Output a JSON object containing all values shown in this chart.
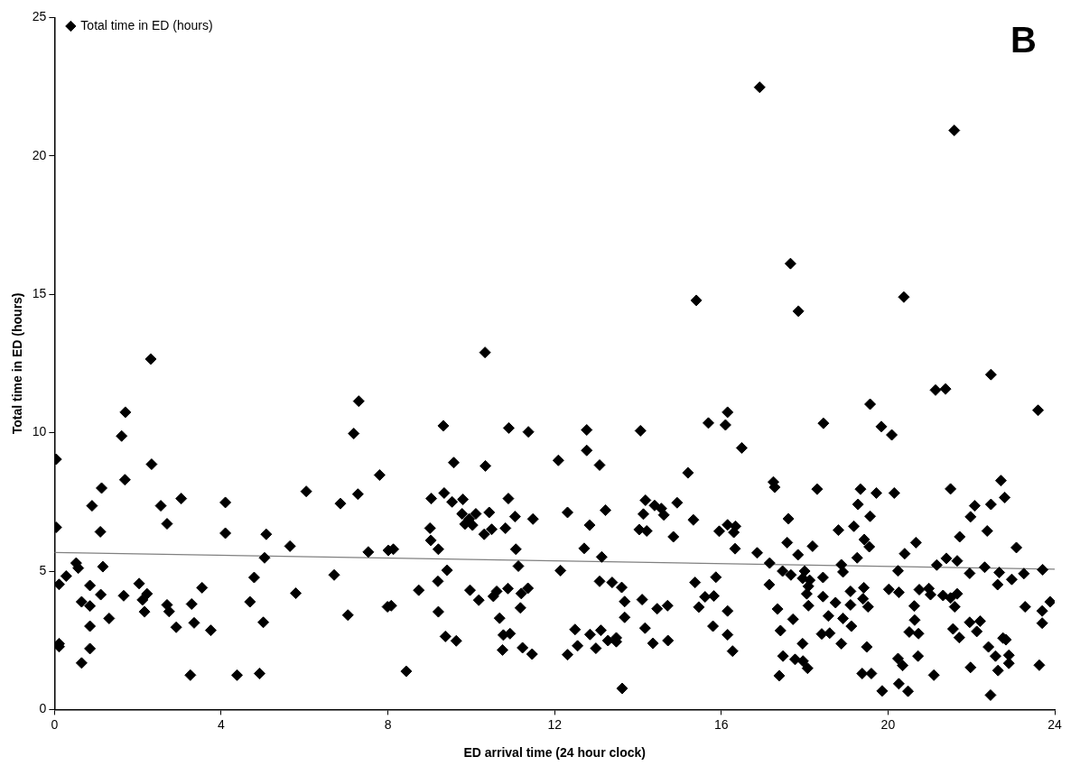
{
  "chart_data": {
    "type": "scatter",
    "xlabel": "ED arrival time (24 hour clock)",
    "ylabel": "Total time in ED (hours)",
    "annotations": [
      "B"
    ],
    "xlim": [
      0,
      24
    ],
    "xticks": [
      0,
      4,
      8,
      12,
      16,
      20,
      24
    ],
    "ylim": [
      0,
      25
    ],
    "yticks": [
      0,
      5,
      10,
      15,
      20,
      25
    ],
    "grid": false,
    "legend": "top left",
    "marker": "diamond",
    "series": [
      {
        "name": "Total time in ED (hours)",
        "color": "#000000",
        "x": [
          16.92,
          21.59,
          17.66,
          17.85,
          20.38,
          22.47,
          21.14,
          21.38,
          23.6,
          19.57,
          16.15,
          16.1,
          16.49,
          18.45,
          19.84,
          20.09,
          17.25,
          17.28,
          18.3,
          19.34,
          19.72,
          20.15,
          21.5,
          22.71,
          22.8,
          19.28,
          19.57,
          22.08,
          21.98,
          22.47,
          22.38,
          17.61,
          18.81,
          19.18,
          19.43,
          19.55,
          16.15,
          16.34,
          16.3,
          16.33,
          17.58,
          17.84,
          18.19,
          16.86,
          17.16,
          21.72,
          20.67,
          20.4,
          23.08,
          19.26,
          18.88,
          18.92,
          17.47,
          17.67,
          18.0,
          17.95,
          18.12,
          18.09,
          18.05,
          18.44,
          17.15,
          20.24,
          20.02,
          20.26,
          19.42,
          19.4,
          19.52,
          19.1,
          19.1,
          18.44,
          18.09,
          18.74,
          18.57,
          18.92,
          19.12,
          18.41,
          18.6,
          18.88,
          19.49,
          19.38,
          19.6,
          19.86,
          20.26,
          20.48,
          20.24,
          20.35,
          20.72,
          20.51,
          20.73,
          20.64,
          20.63,
          20.75,
          20.98,
          21.02,
          21.17,
          21.4,
          21.66,
          21.32,
          21.5,
          21.66,
          21.6,
          21.56,
          21.71,
          21.1,
          21.96,
          22.21,
          22.13,
          21.98,
          21.96,
          22.32,
          22.67,
          22.63,
          22.97,
          23.26,
          23.71,
          23.29,
          23.89,
          23.7,
          23.7,
          23.63,
          22.41,
          22.58,
          22.9,
          22.9,
          22.76,
          22.83,
          22.64,
          22.46,
          16.15,
          16.15,
          16.27,
          17.35,
          17.72,
          17.42,
          17.95,
          17.48,
          17.77,
          17.96,
          18.07,
          17.39,
          15.4,
          10.33,
          9.33,
          10.9,
          11.37,
          12.77,
          14.06,
          15.69,
          12.77,
          13.08,
          12.09,
          9.58,
          10.34,
          15.2,
          9.04,
          9.35,
          9.54,
          9.8,
          9.78,
          10.11,
          10.43,
          9.85,
          10.03,
          9.95,
          10.31,
          10.49,
          10.89,
          11.05,
          10.82,
          11.48,
          9.01,
          9.03,
          9.21,
          8.13,
          12.31,
          12.84,
          13.22,
          12.71,
          13.13,
          11.07,
          11.13,
          9.42,
          9.2,
          12.14,
          14.18,
          14.4,
          14.56,
          14.62,
          14.94,
          14.13,
          14.03,
          14.21,
          14.85,
          15.33,
          15.95,
          8.74,
          8.08,
          9.21,
          9.97,
          10.18,
          10.61,
          10.53,
          10.88,
          11.2,
          11.36,
          11.18,
          10.68,
          10.77,
          10.93,
          10.75,
          11.23,
          11.46,
          9.38,
          9.64,
          8.44,
          13.08,
          13.38,
          13.61,
          13.68,
          13.68,
          14.1,
          14.46,
          14.71,
          14.17,
          12.49,
          12.85,
          13.11,
          12.55,
          12.99,
          12.31,
          13.28,
          13.48,
          13.48,
          14.36,
          14.72,
          13.62,
          15.37,
          15.87,
          15.61,
          15.82,
          15.46,
          15.8,
          2.31,
          7.3,
          7.18,
          1.7,
          1.61,
          0.04,
          2.33,
          1.69,
          7.8,
          1.13,
          0.9,
          2.55,
          3.04,
          4.1,
          6.04,
          6.86,
          7.28,
          2.7,
          4.1,
          1.1,
          0.04,
          5.08,
          5.65,
          7.53,
          8.01,
          5.04,
          0.52,
          0.57,
          1.16,
          0.28,
          0.11,
          0.85,
          1.11,
          0.65,
          0.85,
          1.31,
          0.85,
          1.66,
          2.03,
          2.22,
          2.11,
          2.16,
          2.7,
          2.75,
          2.92,
          3.29,
          3.35,
          3.54,
          3.75,
          4.79,
          4.69,
          5.01,
          5.79,
          6.71,
          7.04,
          7.99,
          0.11,
          0.11,
          0.85,
          0.65,
          3.26,
          4.38,
          4.92
        ],
        "values": [
          22.48,
          20.92,
          16.11,
          14.39,
          14.9,
          12.1,
          11.54,
          11.58,
          10.81,
          11.03,
          10.74,
          10.28,
          9.45,
          10.34,
          10.22,
          9.92,
          8.22,
          8.03,
          7.96,
          7.96,
          7.82,
          7.82,
          7.97,
          8.27,
          7.66,
          7.41,
          6.98,
          7.36,
          6.96,
          7.41,
          6.45,
          6.89,
          6.48,
          6.62,
          6.14,
          5.88,
          6.67,
          6.62,
          6.4,
          5.81,
          6.03,
          5.59,
          5.9,
          5.66,
          5.29,
          6.24,
          6.03,
          5.63,
          5.85,
          5.48,
          5.23,
          4.97,
          5.0,
          4.86,
          5.0,
          4.74,
          4.67,
          4.45,
          4.18,
          4.77,
          4.51,
          5.01,
          4.34,
          4.23,
          4.4,
          4.0,
          3.71,
          4.27,
          3.78,
          4.08,
          3.75,
          3.86,
          3.38,
          3.29,
          3.01,
          2.73,
          2.76,
          2.38,
          2.26,
          1.3,
          1.3,
          0.67,
          0.93,
          0.66,
          1.84,
          1.59,
          1.93,
          2.8,
          2.74,
          3.23,
          3.74,
          4.33,
          4.37,
          4.15,
          5.22,
          5.46,
          5.37,
          4.12,
          4.03,
          4.18,
          3.71,
          2.91,
          2.6,
          1.24,
          3.15,
          3.19,
          2.82,
          1.52,
          4.92,
          5.14,
          4.95,
          4.51,
          4.7,
          4.91,
          5.05,
          3.71,
          3.89,
          3.56,
          3.12,
          1.6,
          2.26,
          1.93,
          1.96,
          1.67,
          2.58,
          2.52,
          1.41,
          0.52,
          3.56,
          2.7,
          2.11,
          3.63,
          3.26,
          2.85,
          2.38,
          1.93,
          1.81,
          1.75,
          1.49,
          1.22,
          14.78,
          12.9,
          10.25,
          10.17,
          10.03,
          10.1,
          10.07,
          10.35,
          9.36,
          8.83,
          9.0,
          8.92,
          8.8,
          8.55,
          7.62,
          7.82,
          7.5,
          7.59,
          7.07,
          7.07,
          7.12,
          6.7,
          6.66,
          6.88,
          6.33,
          6.51,
          7.62,
          6.97,
          6.55,
          6.88,
          6.55,
          6.11,
          5.79,
          5.79,
          7.12,
          6.66,
          7.2,
          5.82,
          5.51,
          5.79,
          5.18,
          5.03,
          4.63,
          5.02,
          7.56,
          7.37,
          7.26,
          7.03,
          7.47,
          7.06,
          6.5,
          6.45,
          6.24,
          6.85,
          6.44,
          4.31,
          3.75,
          3.53,
          4.31,
          3.95,
          4.27,
          4.09,
          4.37,
          4.19,
          4.38,
          3.67,
          3.3,
          2.69,
          2.74,
          2.15,
          2.23,
          2.0,
          2.64,
          2.48,
          1.38,
          4.63,
          4.59,
          4.41,
          3.9,
          3.33,
          3.97,
          3.64,
          3.75,
          2.94,
          2.89,
          2.71,
          2.86,
          2.3,
          2.21,
          1.98,
          2.49,
          2.59,
          2.45,
          2.39,
          2.49,
          0.76,
          4.59,
          4.78,
          4.07,
          4.1,
          3.7,
          3.01,
          12.66,
          11.14,
          9.97,
          10.74,
          9.88,
          9.04,
          8.86,
          8.3,
          8.47,
          8.0,
          7.36,
          7.36,
          7.62,
          7.48,
          7.88,
          7.44,
          7.78,
          6.71,
          6.37,
          6.42,
          6.58,
          6.33,
          5.9,
          5.69,
          5.75,
          5.48,
          5.29,
          5.11,
          5.16,
          4.82,
          4.52,
          4.48,
          4.15,
          3.89,
          3.74,
          3.29,
          3.01,
          4.11,
          4.55,
          4.18,
          3.96,
          3.53,
          3.78,
          3.54,
          2.97,
          3.81,
          3.13,
          4.4,
          2.86,
          4.77,
          3.89,
          3.15,
          4.2,
          4.86,
          3.41,
          3.71,
          2.38,
          2.27,
          2.2,
          1.68,
          1.24,
          1.24,
          1.3
        ]
      },
      {
        "type": "line",
        "color": "#808080",
        "marker": "none",
        "x": [
          0,
          24
        ],
        "values": [
          5.67,
          5.07
        ]
      }
    ]
  }
}
